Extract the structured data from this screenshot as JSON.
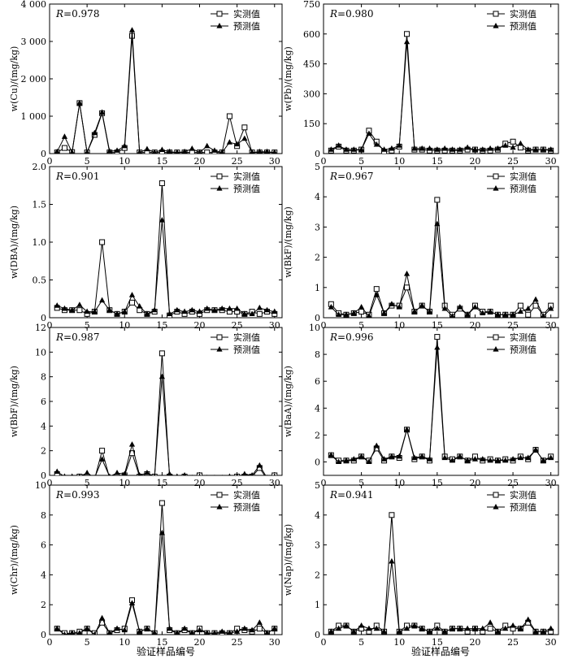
{
  "xlabel": "验证样品编号",
  "legend": {
    "measured": "实测值",
    "predicted": "预测值"
  },
  "chart_data": [
    {
      "type": "line",
      "r_label": "R",
      "r_value": "=0.978",
      "ylabel": "w(Cu)/(mg/kg)",
      "ylim": [
        0,
        4000
      ],
      "yticks": [
        0,
        1000,
        2000,
        3000,
        4000
      ],
      "ytick_labels": [
        "0",
        "1 000",
        "2 000",
        "3 000",
        "4 000"
      ],
      "xlim": [
        0,
        31
      ],
      "xticks": [
        0,
        5,
        10,
        15,
        20,
        25,
        30
      ],
      "x": [
        1,
        2,
        3,
        4,
        5,
        6,
        7,
        8,
        9,
        10,
        11,
        12,
        13,
        14,
        15,
        16,
        17,
        18,
        19,
        20,
        21,
        22,
        23,
        24,
        25,
        26,
        27,
        28,
        29,
        30
      ],
      "series": [
        {
          "name": "实测值",
          "values": [
            30,
            150,
            40,
            1350,
            30,
            500,
            1080,
            30,
            30,
            150,
            3150,
            30,
            30,
            30,
            30,
            30,
            30,
            30,
            30,
            30,
            30,
            30,
            30,
            1000,
            200,
            700,
            30,
            30,
            30,
            30
          ]
        },
        {
          "name": "预测值",
          "values": [
            50,
            450,
            30,
            1350,
            30,
            550,
            1100,
            60,
            80,
            200,
            3300,
            30,
            120,
            30,
            100,
            50,
            30,
            50,
            130,
            30,
            200,
            80,
            30,
            300,
            250,
            400,
            30,
            50,
            50,
            30
          ]
        }
      ]
    },
    {
      "type": "line",
      "r_label": "R",
      "r_value": "=0.980",
      "ylabel": "w(Pb)/(mg/kg)",
      "ylim": [
        0,
        750
      ],
      "yticks": [
        0,
        150,
        300,
        450,
        600,
        750
      ],
      "ytick_labels": [
        "0",
        "150",
        "300",
        "450",
        "600",
        "750"
      ],
      "xlim": [
        0,
        31
      ],
      "xticks": [
        0,
        5,
        10,
        15,
        20,
        25,
        30
      ],
      "x": [
        1,
        2,
        3,
        4,
        5,
        6,
        7,
        8,
        9,
        10,
        11,
        12,
        13,
        14,
        15,
        16,
        17,
        18,
        19,
        20,
        21,
        22,
        23,
        24,
        25,
        26,
        27,
        28,
        29,
        30
      ],
      "series": [
        {
          "name": "实测值",
          "values": [
            15,
            35,
            15,
            15,
            20,
            115,
            60,
            10,
            15,
            35,
            600,
            20,
            20,
            15,
            15,
            15,
            15,
            15,
            20,
            20,
            15,
            15,
            20,
            50,
            60,
            30,
            15,
            20,
            20,
            15
          ]
        },
        {
          "name": "预测值",
          "values": [
            20,
            40,
            20,
            20,
            20,
            100,
            45,
            20,
            25,
            40,
            560,
            25,
            25,
            25,
            20,
            25,
            20,
            20,
            30,
            20,
            20,
            25,
            25,
            40,
            30,
            50,
            20,
            20,
            20,
            20
          ]
        }
      ]
    },
    {
      "type": "line",
      "r_label": "R",
      "r_value": "=0.901",
      "ylabel": "w(DBA)/(mg/kg)",
      "ylim": [
        0,
        2.0
      ],
      "yticks": [
        0,
        0.5,
        1.0,
        1.5,
        2.0
      ],
      "ytick_labels": [
        "0",
        "0.5",
        "1.0",
        "1.5",
        "2.0"
      ],
      "xlim": [
        0,
        31
      ],
      "xticks": [
        0,
        5,
        10,
        15,
        20,
        25,
        30
      ],
      "x": [
        1,
        2,
        3,
        4,
        5,
        6,
        7,
        8,
        9,
        10,
        11,
        12,
        13,
        14,
        15,
        16,
        17,
        18,
        19,
        20,
        21,
        22,
        23,
        24,
        25,
        26,
        27,
        28,
        29,
        30
      ],
      "series": [
        {
          "name": "实测值",
          "values": [
            0.13,
            0.1,
            0.1,
            0.1,
            0.05,
            0.08,
            1.0,
            0.1,
            0.05,
            0.08,
            0.2,
            0.1,
            0.05,
            0.08,
            1.78,
            0.03,
            0.08,
            0.05,
            0.08,
            0.05,
            0.1,
            0.1,
            0.1,
            0.08,
            0.08,
            0.05,
            0.08,
            0.05,
            0.08,
            0.05
          ]
        },
        {
          "name": "预测值",
          "values": [
            0.16,
            0.12,
            0.1,
            0.17,
            0.08,
            0.08,
            0.23,
            0.1,
            0.05,
            0.08,
            0.3,
            0.15,
            0.05,
            0.1,
            1.29,
            0.05,
            0.1,
            0.08,
            0.1,
            0.08,
            0.12,
            0.1,
            0.12,
            0.12,
            0.12,
            0.05,
            0.05,
            0.13,
            0.1,
            0.08
          ]
        }
      ]
    },
    {
      "type": "line",
      "r_label": "R",
      "r_value": "=0.967",
      "ylabel": "w(BkF)/(mg/kg)",
      "ylim": [
        0,
        5
      ],
      "yticks": [
        0,
        1,
        2,
        3,
        4,
        5
      ],
      "ytick_labels": [
        "0",
        "1",
        "2",
        "3",
        "4",
        "5"
      ],
      "xlim": [
        0,
        31
      ],
      "xticks": [
        0,
        5,
        10,
        15,
        20,
        25,
        30
      ],
      "x": [
        1,
        2,
        3,
        4,
        5,
        6,
        7,
        8,
        9,
        10,
        11,
        12,
        13,
        14,
        15,
        16,
        17,
        18,
        19,
        20,
        21,
        22,
        23,
        24,
        25,
        26,
        27,
        28,
        29,
        30
      ],
      "series": [
        {
          "name": "实测值",
          "values": [
            0.45,
            0.15,
            0.1,
            0.15,
            0.2,
            0.1,
            0.95,
            0.15,
            0.4,
            0.4,
            1.0,
            0.2,
            0.4,
            0.2,
            3.9,
            0.4,
            0.1,
            0.3,
            0.1,
            0.4,
            0.2,
            0.2,
            0.1,
            0.1,
            0.1,
            0.4,
            0.1,
            0.4,
            0.1,
            0.4
          ]
        },
        {
          "name": "预测值",
          "values": [
            0.35,
            0.1,
            0.1,
            0.15,
            0.35,
            0.05,
            0.75,
            0.15,
            0.45,
            0.35,
            1.45,
            0.2,
            0.4,
            0.2,
            3.1,
            0.3,
            0.05,
            0.35,
            0.1,
            0.35,
            0.15,
            0.2,
            0.1,
            0.1,
            0.1,
            0.2,
            0.3,
            0.6,
            0.05,
            0.3
          ]
        }
      ]
    },
    {
      "type": "line",
      "r_label": "R",
      "r_value": "=0.987",
      "ylabel": "w(BbF)/(mg/kg)",
      "ylim": [
        0,
        12
      ],
      "yticks": [
        0,
        2,
        4,
        6,
        8,
        10,
        12
      ],
      "ytick_labels": [
        "0",
        "2",
        "4",
        "6",
        "8",
        "10",
        "12"
      ],
      "xlim": [
        0,
        31
      ],
      "xticks": [
        0,
        5,
        10,
        15,
        20,
        25,
        30
      ],
      "x": [
        1,
        2,
        3,
        4,
        5,
        6,
        7,
        8,
        9,
        10,
        11,
        12,
        13,
        14,
        15,
        16,
        17,
        18,
        19,
        20,
        21,
        22,
        23,
        24,
        25,
        26,
        27,
        28,
        29,
        30
      ],
      "series": [
        {
          "name": "实测值",
          "values": [
            0.1,
            -0.2,
            -0.2,
            -0.1,
            -0.1,
            -0.3,
            2.0,
            -0.2,
            -0.1,
            0.0,
            1.8,
            -0.1,
            0.1,
            -0.1,
            9.9,
            -0.1,
            -0.2,
            -0.1,
            -0.2,
            0.0,
            -0.2,
            -0.2,
            -0.2,
            -0.2,
            -0.1,
            -0.1,
            -0.1,
            0.6,
            -0.3,
            0.0
          ]
        },
        {
          "name": "预测值",
          "values": [
            0.3,
            -0.1,
            -0.1,
            -0.1,
            0.2,
            -0.2,
            1.3,
            -0.1,
            0.2,
            0.1,
            2.5,
            0.0,
            0.2,
            -0.1,
            8.0,
            0.1,
            -0.1,
            0.0,
            -0.2,
            -0.1,
            -0.2,
            -0.2,
            -0.2,
            -0.1,
            -0.1,
            0.1,
            0.0,
            0.8,
            -0.2,
            -0.1
          ]
        }
      ]
    },
    {
      "type": "line",
      "r_label": "R",
      "r_value": "=0.996",
      "ylabel": "w(BaA)/(mg/kg)",
      "ylim": [
        -1,
        10
      ],
      "yticks": [
        0,
        2,
        4,
        6,
        8,
        10
      ],
      "ytick_labels": [
        "0",
        "2",
        "4",
        "6",
        "8",
        "10"
      ],
      "xlim": [
        0,
        31
      ],
      "xticks": [
        0,
        5,
        10,
        15,
        20,
        25,
        30
      ],
      "x": [
        1,
        2,
        3,
        4,
        5,
        6,
        7,
        8,
        9,
        10,
        11,
        12,
        13,
        14,
        15,
        16,
        17,
        18,
        19,
        20,
        21,
        22,
        23,
        24,
        25,
        26,
        27,
        28,
        29,
        30
      ],
      "series": [
        {
          "name": "实测值",
          "values": [
            0.5,
            0.1,
            0.1,
            0.1,
            0.4,
            0.1,
            1.0,
            0.1,
            0.4,
            0.3,
            2.4,
            0.2,
            0.4,
            0.1,
            9.3,
            0.4,
            0.2,
            0.4,
            0.1,
            0.4,
            0.1,
            0.2,
            0.1,
            0.2,
            0.1,
            0.4,
            0.2,
            0.9,
            0.1,
            0.4
          ]
        },
        {
          "name": "预测值",
          "values": [
            0.5,
            0.0,
            0.1,
            0.2,
            0.4,
            0.0,
            1.2,
            0.2,
            0.4,
            0.4,
            2.4,
            0.3,
            0.4,
            0.2,
            8.5,
            0.3,
            0.1,
            0.4,
            0.1,
            0.2,
            0.2,
            0.1,
            0.1,
            0.1,
            0.2,
            0.3,
            0.3,
            0.9,
            0.1,
            0.3
          ]
        }
      ]
    },
    {
      "type": "line",
      "r_label": "R",
      "r_value": "=0.993",
      "ylabel": "w(Chr)/(mg/kg)",
      "ylim": [
        0,
        10
      ],
      "yticks": [
        0,
        2,
        4,
        6,
        8,
        10
      ],
      "ytick_labels": [
        "0",
        "2",
        "4",
        "6",
        "8",
        "10"
      ],
      "xlim": [
        0,
        31
      ],
      "xticks": [
        0,
        5,
        10,
        15,
        20,
        25,
        30
      ],
      "x": [
        1,
        2,
        3,
        4,
        5,
        6,
        7,
        8,
        9,
        10,
        11,
        12,
        13,
        14,
        15,
        16,
        17,
        18,
        19,
        20,
        21,
        22,
        23,
        24,
        25,
        26,
        27,
        28,
        29,
        30
      ],
      "series": [
        {
          "name": "实测值",
          "values": [
            0.4,
            0.1,
            0.1,
            0.2,
            0.4,
            0.1,
            0.8,
            0.1,
            0.3,
            0.4,
            2.3,
            0.2,
            0.4,
            0.1,
            8.8,
            0.3,
            0.1,
            0.3,
            0.1,
            0.4,
            0.1,
            0.1,
            0.1,
            0.1,
            0.4,
            0.3,
            0.2,
            0.4,
            0.1,
            0.4
          ]
        },
        {
          "name": "预测值",
          "values": [
            0.4,
            0.0,
            0.1,
            0.1,
            0.4,
            0.0,
            1.1,
            0.1,
            0.4,
            0.3,
            2.1,
            0.2,
            0.4,
            0.1,
            6.8,
            0.4,
            0.1,
            0.4,
            0.1,
            0.3,
            0.1,
            0.1,
            0.2,
            0.1,
            0.2,
            0.4,
            0.3,
            0.8,
            0.1,
            0.4
          ]
        }
      ]
    },
    {
      "type": "line",
      "r_label": "R",
      "r_value": "=0.941",
      "ylabel": "w(Nap)/(mg/kg)",
      "ylim": [
        0,
        5
      ],
      "yticks": [
        0,
        1,
        2,
        3,
        4,
        5
      ],
      "ytick_labels": [
        "0",
        "1",
        "2",
        "3",
        "4",
        "5"
      ],
      "xlim": [
        0,
        31
      ],
      "xticks": [
        0,
        5,
        10,
        15,
        20,
        25,
        30
      ],
      "x": [
        1,
        2,
        3,
        4,
        5,
        6,
        7,
        8,
        9,
        10,
        11,
        12,
        13,
        14,
        15,
        16,
        17,
        18,
        19,
        20,
        21,
        22,
        23,
        24,
        25,
        26,
        27,
        28,
        29,
        30
      ],
      "series": [
        {
          "name": "实测值",
          "values": [
            0.1,
            0.3,
            0.3,
            0.1,
            0.2,
            0.1,
            0.3,
            0.1,
            4.0,
            0.1,
            0.3,
            0.3,
            0.2,
            0.1,
            0.3,
            0.1,
            0.2,
            0.2,
            0.1,
            0.2,
            0.1,
            0.2,
            0.1,
            0.3,
            0.2,
            0.2,
            0.4,
            0.1,
            0.1,
            0.1
          ]
        },
        {
          "name": "预测值",
          "values": [
            0.1,
            0.2,
            0.3,
            0.1,
            0.3,
            0.2,
            0.2,
            0.1,
            2.45,
            0.1,
            0.2,
            0.3,
            0.2,
            0.1,
            0.2,
            0.1,
            0.2,
            0.2,
            0.2,
            0.2,
            0.2,
            0.4,
            0.1,
            0.2,
            0.3,
            0.2,
            0.5,
            0.1,
            0.1,
            0.2
          ]
        }
      ]
    }
  ]
}
